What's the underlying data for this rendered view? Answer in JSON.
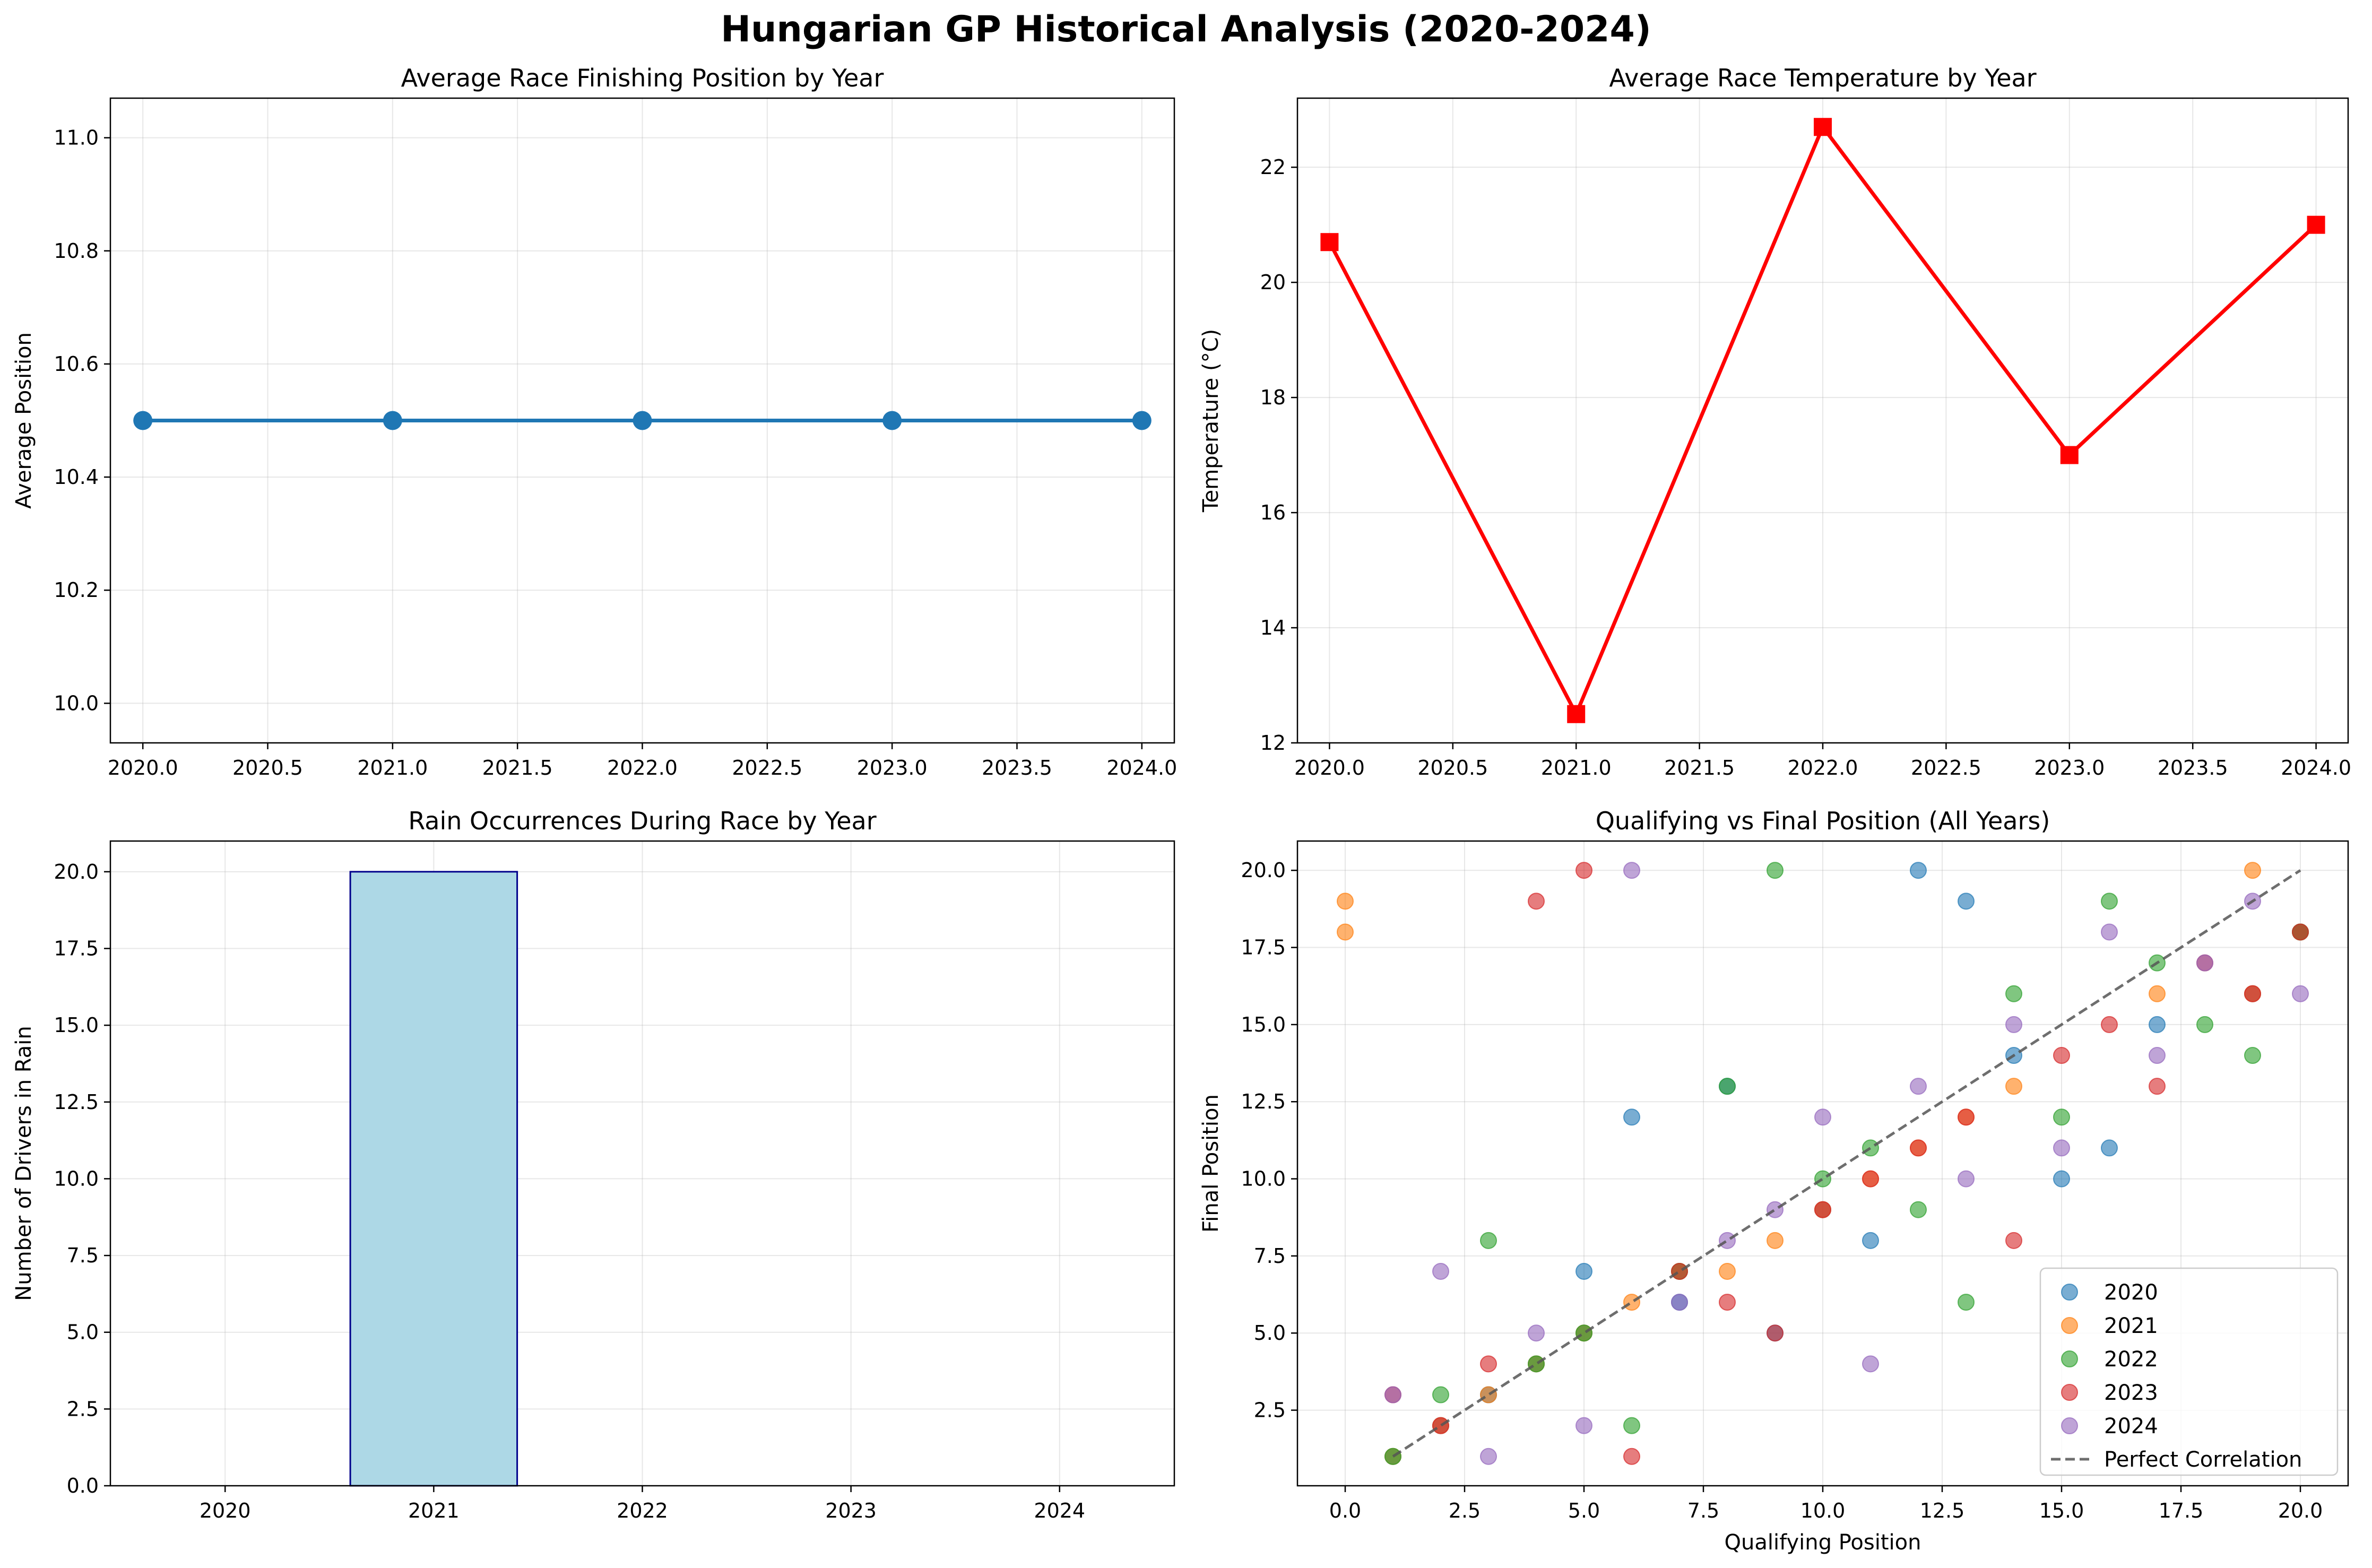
{
  "figure": {
    "suptitle": "Hungarian GP Historical Analysis (2020-2024)"
  },
  "chart_data": [
    {
      "type": "line",
      "title": "Average Race Finishing Position by Year",
      "xlabel": "",
      "ylabel": "Average Position",
      "x": [
        2020,
        2021,
        2022,
        2023,
        2024
      ],
      "values": [
        10.5,
        10.5,
        10.5,
        10.5,
        10.5
      ],
      "xlim": [
        2019.87,
        2024.13
      ],
      "ylim": [
        9.93,
        11.07
      ],
      "xticks": [
        "2020.0",
        "2020.5",
        "2021.0",
        "2021.5",
        "2022.0",
        "2022.5",
        "2023.0",
        "2023.5",
        "2024.0"
      ],
      "yticks": [
        "10.0",
        "10.2",
        "10.4",
        "10.6",
        "10.8",
        "11.0"
      ],
      "grid": true,
      "marker": "circle",
      "color": "#1f77b4"
    },
    {
      "type": "line",
      "title": "Average Race Temperature by Year",
      "xlabel": "",
      "ylabel": "Temperature (°C)",
      "x": [
        2020,
        2021,
        2022,
        2023,
        2024
      ],
      "values": [
        20.7,
        12.5,
        22.7,
        17.0,
        21.0
      ],
      "xlim": [
        2019.87,
        2024.13
      ],
      "ylim": [
        12.0,
        23.2
      ],
      "xticks": [
        "2020.0",
        "2020.5",
        "2021.0",
        "2021.5",
        "2022.0",
        "2022.5",
        "2023.0",
        "2023.5",
        "2024.0"
      ],
      "yticks": [
        "12",
        "14",
        "16",
        "18",
        "20",
        "22"
      ],
      "grid": true,
      "marker": "square",
      "color": "#ff0000"
    },
    {
      "type": "bar",
      "title": "Rain Occurrences During Race by Year",
      "xlabel": "",
      "ylabel": "Number of Drivers in Rain",
      "categories": [
        "2020",
        "2021",
        "2022",
        "2023",
        "2024"
      ],
      "values": [
        0,
        20,
        0,
        0,
        0
      ],
      "ylim": [
        0,
        21
      ],
      "yticks": [
        "0.0",
        "2.5",
        "5.0",
        "7.5",
        "10.0",
        "12.5",
        "15.0",
        "17.5",
        "20.0"
      ],
      "grid": true,
      "bar_color": "#add8e6",
      "edge_color": "#00008b"
    },
    {
      "type": "scatter",
      "title": "Qualifying vs Final Position (All Years)",
      "xlabel": "Qualifying Position",
      "ylabel": "Final Position",
      "xlim": [
        -1.0,
        21.0
      ],
      "ylim": [
        0.05,
        20.95
      ],
      "xticks": [
        "0.0",
        "2.5",
        "5.0",
        "7.5",
        "10.0",
        "12.5",
        "15.0",
        "17.5",
        "20.0"
      ],
      "yticks": [
        "2.5",
        "5.0",
        "7.5",
        "10.0",
        "12.5",
        "15.0",
        "17.5",
        "20.0"
      ],
      "grid": true,
      "legend_position": "lower-right",
      "reference_line": {
        "name": "Perfect Correlation",
        "from": [
          1,
          1
        ],
        "to": [
          20,
          20
        ],
        "color": "#555555"
      },
      "series": [
        {
          "name": "2020",
          "color": "#1f77b4",
          "points": [
            [
              1,
              1
            ],
            [
              2,
              2
            ],
            [
              3,
              3
            ],
            [
              4,
              4
            ],
            [
              5,
              5
            ],
            [
              5,
              7
            ],
            [
              6,
              12
            ],
            [
              7,
              6
            ],
            [
              8,
              13
            ],
            [
              9,
              5
            ],
            [
              10,
              9
            ],
            [
              11,
              8
            ],
            [
              12,
              20
            ],
            [
              13,
              19
            ],
            [
              14,
              14
            ],
            [
              15,
              10
            ],
            [
              16,
              11
            ],
            [
              17,
              15
            ],
            [
              19,
              16
            ],
            [
              20,
              18
            ]
          ]
        },
        {
          "name": "2021",
          "color": "#ff7f0e",
          "points": [
            [
              0,
              19
            ],
            [
              0,
              18
            ],
            [
              1,
              1
            ],
            [
              2,
              2
            ],
            [
              3,
              3
            ],
            [
              4,
              4
            ],
            [
              5,
              5
            ],
            [
              6,
              6
            ],
            [
              7,
              7
            ],
            [
              8,
              7
            ],
            [
              9,
              8
            ],
            [
              10,
              9
            ],
            [
              11,
              10
            ],
            [
              12,
              11
            ],
            [
              13,
              12
            ],
            [
              14,
              13
            ],
            [
              17,
              16
            ],
            [
              19,
              20
            ],
            [
              19,
              16
            ],
            [
              20,
              18
            ]
          ]
        },
        {
          "name": "2022",
          "color": "#2ca02c",
          "points": [
            [
              1,
              1
            ],
            [
              2,
              3
            ],
            [
              3,
              8
            ],
            [
              4,
              4
            ],
            [
              5,
              5
            ],
            [
              6,
              2
            ],
            [
              7,
              7
            ],
            [
              8,
              13
            ],
            [
              9,
              20
            ],
            [
              10,
              10
            ],
            [
              11,
              11
            ],
            [
              12,
              9
            ],
            [
              13,
              6
            ],
            [
              14,
              16
            ],
            [
              15,
              12
            ],
            [
              16,
              19
            ],
            [
              17,
              17
            ],
            [
              18,
              15
            ],
            [
              19,
              14
            ],
            [
              20,
              18
            ]
          ]
        },
        {
          "name": "2023",
          "color": "#d62728",
          "points": [
            [
              1,
              3
            ],
            [
              2,
              2
            ],
            [
              3,
              4
            ],
            [
              4,
              19
            ],
            [
              5,
              20
            ],
            [
              6,
              1
            ],
            [
              7,
              7
            ],
            [
              8,
              6
            ],
            [
              9,
              5
            ],
            [
              10,
              9
            ],
            [
              11,
              10
            ],
            [
              12,
              11
            ],
            [
              13,
              12
            ],
            [
              14,
              8
            ],
            [
              15,
              14
            ],
            [
              16,
              15
            ],
            [
              17,
              13
            ],
            [
              18,
              17
            ],
            [
              19,
              16
            ],
            [
              20,
              18
            ]
          ]
        },
        {
          "name": "2024",
          "color": "#9467bd",
          "points": [
            [
              1,
              3
            ],
            [
              2,
              7
            ],
            [
              3,
              1
            ],
            [
              4,
              5
            ],
            [
              5,
              2
            ],
            [
              6,
              20
            ],
            [
              7,
              6
            ],
            [
              8,
              8
            ],
            [
              9,
              9
            ],
            [
              10,
              12
            ],
            [
              11,
              4
            ],
            [
              12,
              13
            ],
            [
              13,
              10
            ],
            [
              14,
              15
            ],
            [
              15,
              11
            ],
            [
              16,
              18
            ],
            [
              17,
              14
            ],
            [
              18,
              17
            ],
            [
              19,
              19
            ],
            [
              20,
              16
            ]
          ]
        }
      ]
    }
  ]
}
